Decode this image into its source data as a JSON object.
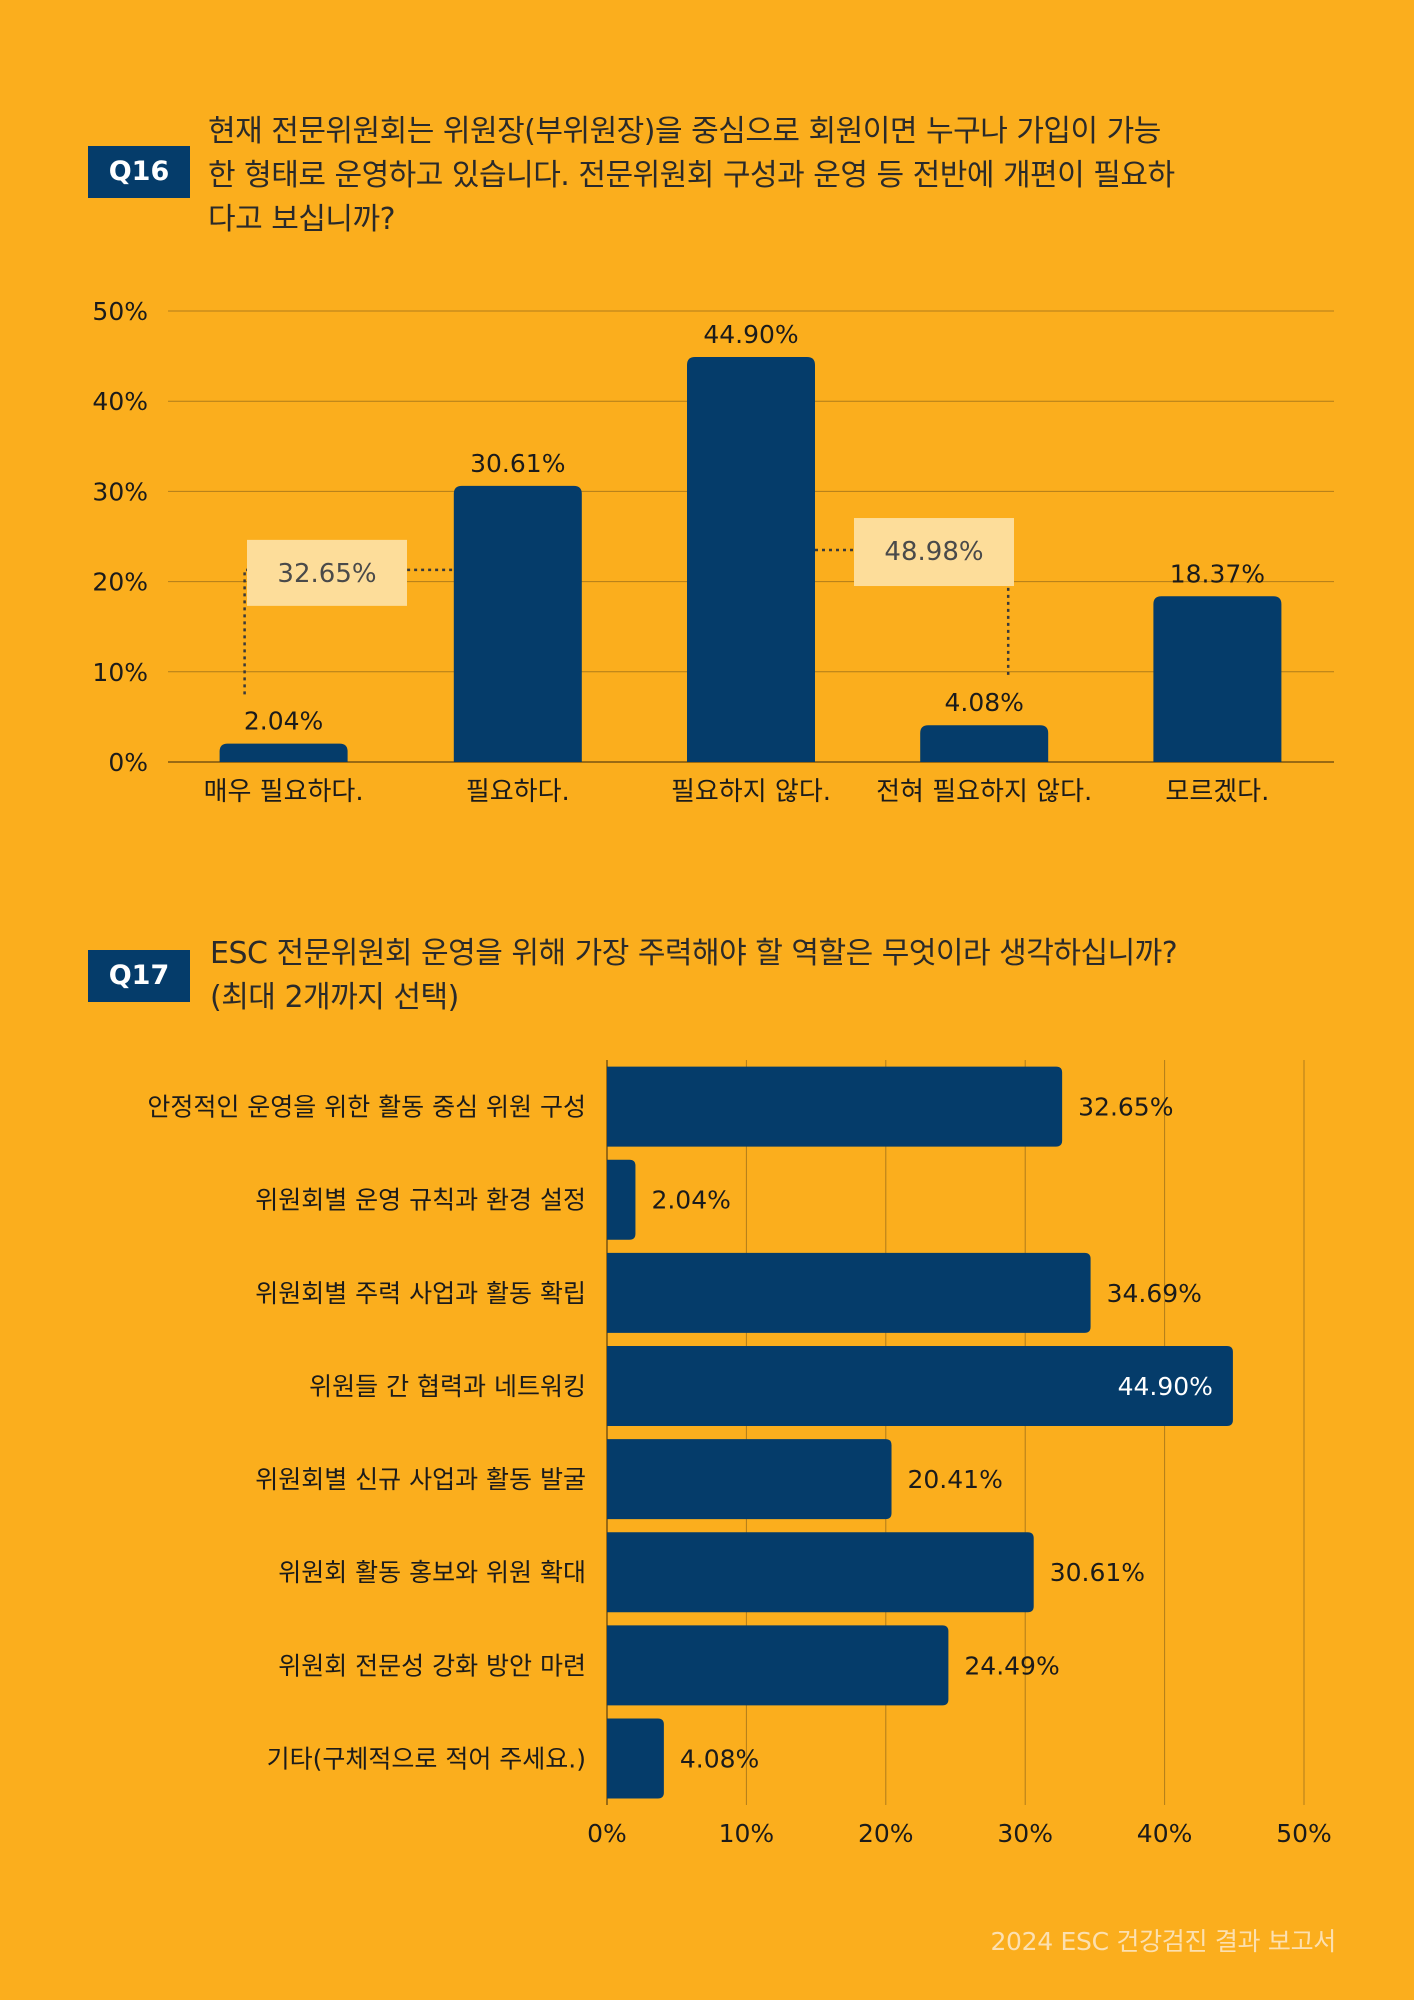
{
  "q16": {
    "badge": "Q16",
    "question_lines": [
      "현재 전문위원회는 위원장(부위원장)을 중심으로 회원이면 누구나 가입이 가능",
      "한 형태로 운영하고 있습니다. 전문위원회 구성과 운영 등 전반에 개편이 필요하",
      "다고 보십니까?"
    ],
    "group_labels": [
      {
        "text": "32.65%",
        "from": 0,
        "to": 1
      },
      {
        "text": "48.98%",
        "from": 2,
        "to": 3
      }
    ]
  },
  "q17": {
    "badge": "Q17",
    "question_lines": [
      "ESC 전문위원회 운영을 위해 가장 주력해야 할 역할은 무엇이라 생각하십니까?",
      "(최대 2개까지 선택)"
    ]
  },
  "footer": "2024 ESC 건강검진 결과 보고서",
  "colors": {
    "background": "#FBAE1D",
    "bar": "#053C6A",
    "grid": "#B07C1A",
    "callout": "#FDDD9A",
    "footer_text": "#FCE0B0"
  },
  "chart_data": [
    {
      "type": "bar",
      "orientation": "vertical",
      "categories": [
        "매우 필요하다.",
        "필요하다.",
        "필요하지 않다.",
        "전혀 필요하지 않다.",
        "모르겠다."
      ],
      "values": [
        2.04,
        30.61,
        44.9,
        4.08,
        18.37
      ],
      "value_labels": [
        "2.04%",
        "30.61%",
        "44.90%",
        "4.08%",
        "18.37%"
      ],
      "ylim": [
        0,
        50
      ],
      "yticks": [
        "0%",
        "10%",
        "20%",
        "30%",
        "40%",
        "50%"
      ],
      "grid": true
    },
    {
      "type": "bar",
      "orientation": "horizontal",
      "categories": [
        "안정적인 운영을 위한 활동 중심 위원 구성",
        "위원회별 운영 규칙과 환경 설정",
        "위원회별 주력 사업과 활동 확립",
        "위원들 간 협력과 네트워킹",
        "위원회별 신규 사업과 활동 발굴",
        "위원회 활동 홍보와 위원 확대",
        "위원회 전문성 강화 방안 마련",
        "기타(구체적으로 적어 주세요.)"
      ],
      "values": [
        32.65,
        2.04,
        34.69,
        44.9,
        20.41,
        30.61,
        24.49,
        4.08
      ],
      "value_labels": [
        "32.65%",
        "2.04%",
        "34.69%",
        "44.90%",
        "20.41%",
        "30.61%",
        "24.49%",
        "4.08%"
      ],
      "xlim": [
        0,
        50
      ],
      "xticks": [
        "0%",
        "10%",
        "20%",
        "30%",
        "40%",
        "50%"
      ],
      "grid": true
    }
  ]
}
